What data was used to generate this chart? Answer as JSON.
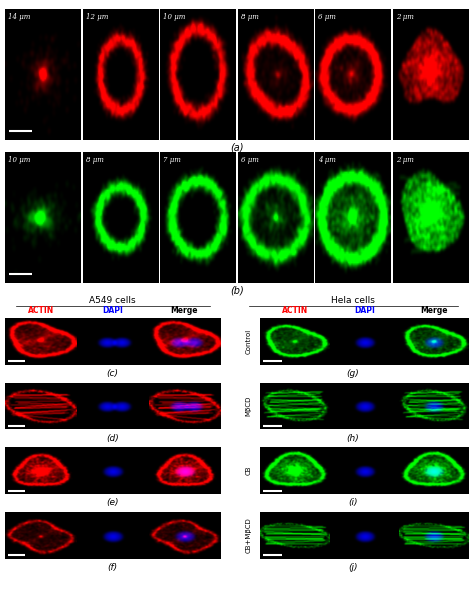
{
  "background": "#000000",
  "figure_bg": "#ffffff",
  "row_a_labels": [
    "14 μm",
    "12 μm",
    "10 μm",
    "8 μm",
    "6 μm",
    "2 μm"
  ],
  "row_b_labels": [
    "10 μm",
    "8 μm",
    "7 μm",
    "6 μm",
    "4 μm",
    "2 μm"
  ],
  "panel_a_label": "(a)",
  "panel_b_label": "(b)",
  "panel_c_label": "(c)",
  "panel_d_label": "(d)",
  "panel_e_label": "(e)",
  "panel_g_label": "(g)",
  "panel_h_label": "(h)",
  "panel_i_label": "(i)",
  "a549_title": "A549 cells",
  "hela_title": "Hela cells",
  "col_labels": [
    "ACTIN",
    "DAPI",
    "Merge"
  ],
  "actin_color_left": "#ff0000",
  "actin_color_right": "#ff0000",
  "dapi_color": "#0000ff",
  "merge_color": "#ffffff",
  "row_labels_right": [
    "Control",
    "MβCD",
    "CB",
    "CB+MβCD"
  ],
  "label_fontsize": 6,
  "title_fontsize": 7,
  "sublabel_fontsize": 7
}
